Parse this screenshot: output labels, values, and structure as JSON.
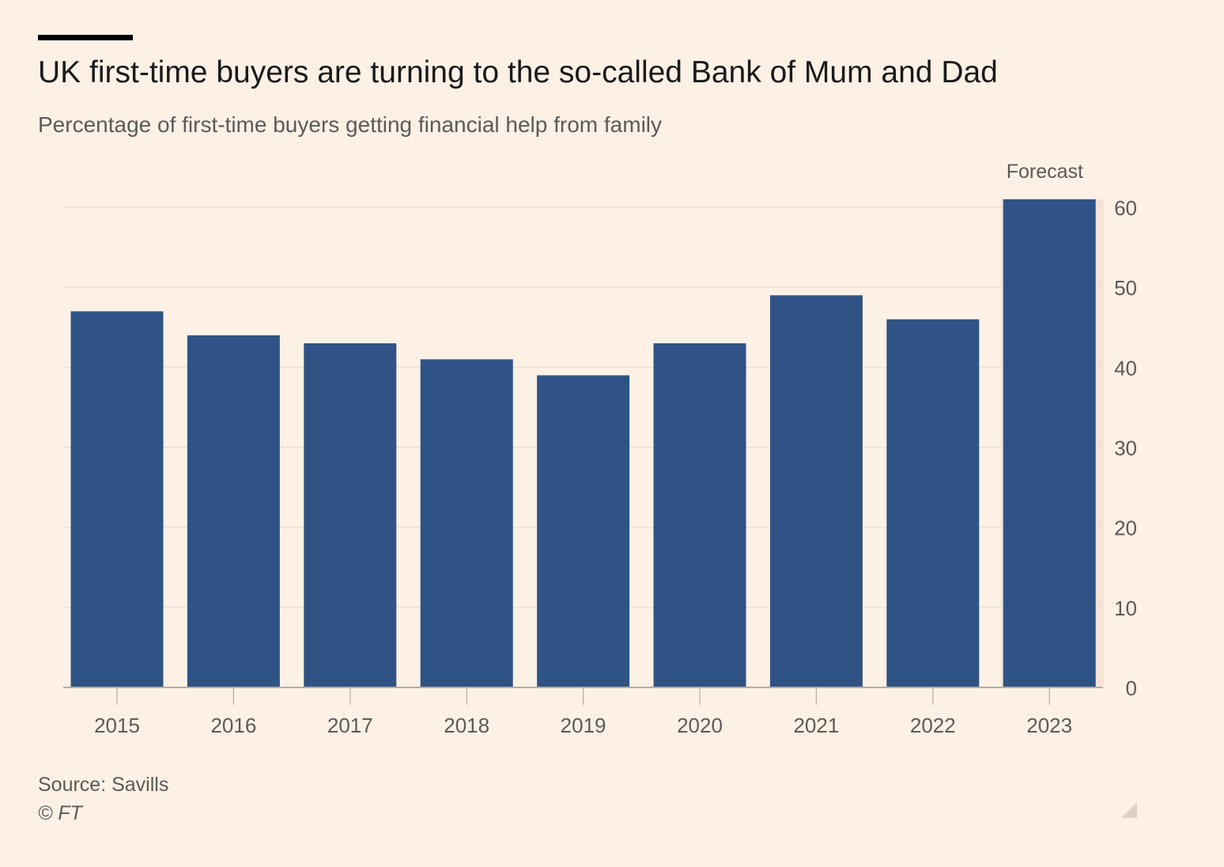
{
  "header": {
    "title": "UK first-time buyers are turning to the so-called Bank of Mum and Dad",
    "subtitle": "Percentage of first-time buyers getting financial help from family"
  },
  "footer": {
    "source": "Source: Savills",
    "copyright": "© FT"
  },
  "colors": {
    "bar": "#2f5385",
    "forecast_band": "#f5e4d6",
    "grid": "#e8ddd3",
    "axis": "#b5aca4",
    "tick_label": "#5c5a58",
    "background": "#fdf1e6"
  },
  "chart_data": {
    "type": "bar",
    "categories": [
      "2015",
      "2016",
      "2017",
      "2018",
      "2019",
      "2020",
      "2021",
      "2022",
      "2023"
    ],
    "values": [
      47,
      44,
      43,
      41,
      39,
      43,
      49,
      46,
      61
    ],
    "ylim": [
      0,
      60
    ],
    "yticks": [
      0,
      10,
      20,
      30,
      40,
      50,
      60
    ],
    "y_axis_position": "right",
    "grid": true,
    "annotations": [
      {
        "label": "Forecast",
        "category": "2023"
      }
    ]
  }
}
